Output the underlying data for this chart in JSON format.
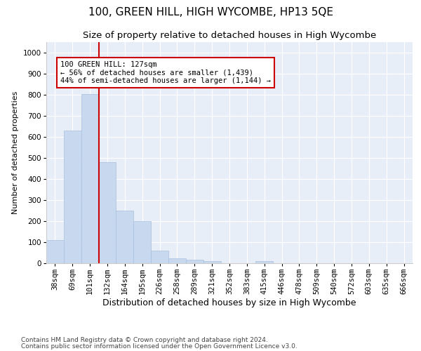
{
  "title": "100, GREEN HILL, HIGH WYCOMBE, HP13 5QE",
  "subtitle": "Size of property relative to detached houses in High Wycombe",
  "xlabel": "Distribution of detached houses by size in High Wycombe",
  "ylabel": "Number of detached properties",
  "bar_values": [
    110,
    630,
    805,
    480,
    250,
    200,
    60,
    25,
    17,
    10,
    0,
    0,
    10,
    0,
    0,
    0,
    0,
    0,
    0,
    0,
    0
  ],
  "categories": [
    "38sqm",
    "69sqm",
    "101sqm",
    "132sqm",
    "164sqm",
    "195sqm",
    "226sqm",
    "258sqm",
    "289sqm",
    "321sqm",
    "352sqm",
    "383sqm",
    "415sqm",
    "446sqm",
    "478sqm",
    "509sqm",
    "540sqm",
    "572sqm",
    "603sqm",
    "635sqm",
    "666sqm"
  ],
  "bar_color": "#c8d9ef",
  "bar_edge_color": "#a8c0de",
  "vline_color": "#cc0000",
  "annotation_text": "100 GREEN HILL: 127sqm\n← 56% of detached houses are smaller (1,439)\n44% of semi-detached houses are larger (1,144) →",
  "annotation_box_color": "white",
  "annotation_box_edge_color": "#cc0000",
  "ylim": [
    0,
    1050
  ],
  "yticks": [
    0,
    100,
    200,
    300,
    400,
    500,
    600,
    700,
    800,
    900,
    1000
  ],
  "background_color": "#e8eef8",
  "footer_line1": "Contains HM Land Registry data © Crown copyright and database right 2024.",
  "footer_line2": "Contains public sector information licensed under the Open Government Licence v3.0.",
  "title_fontsize": 11,
  "subtitle_fontsize": 9.5,
  "xlabel_fontsize": 9,
  "ylabel_fontsize": 8,
  "tick_fontsize": 7.5,
  "annotation_fontsize": 7.5,
  "footer_fontsize": 6.5
}
